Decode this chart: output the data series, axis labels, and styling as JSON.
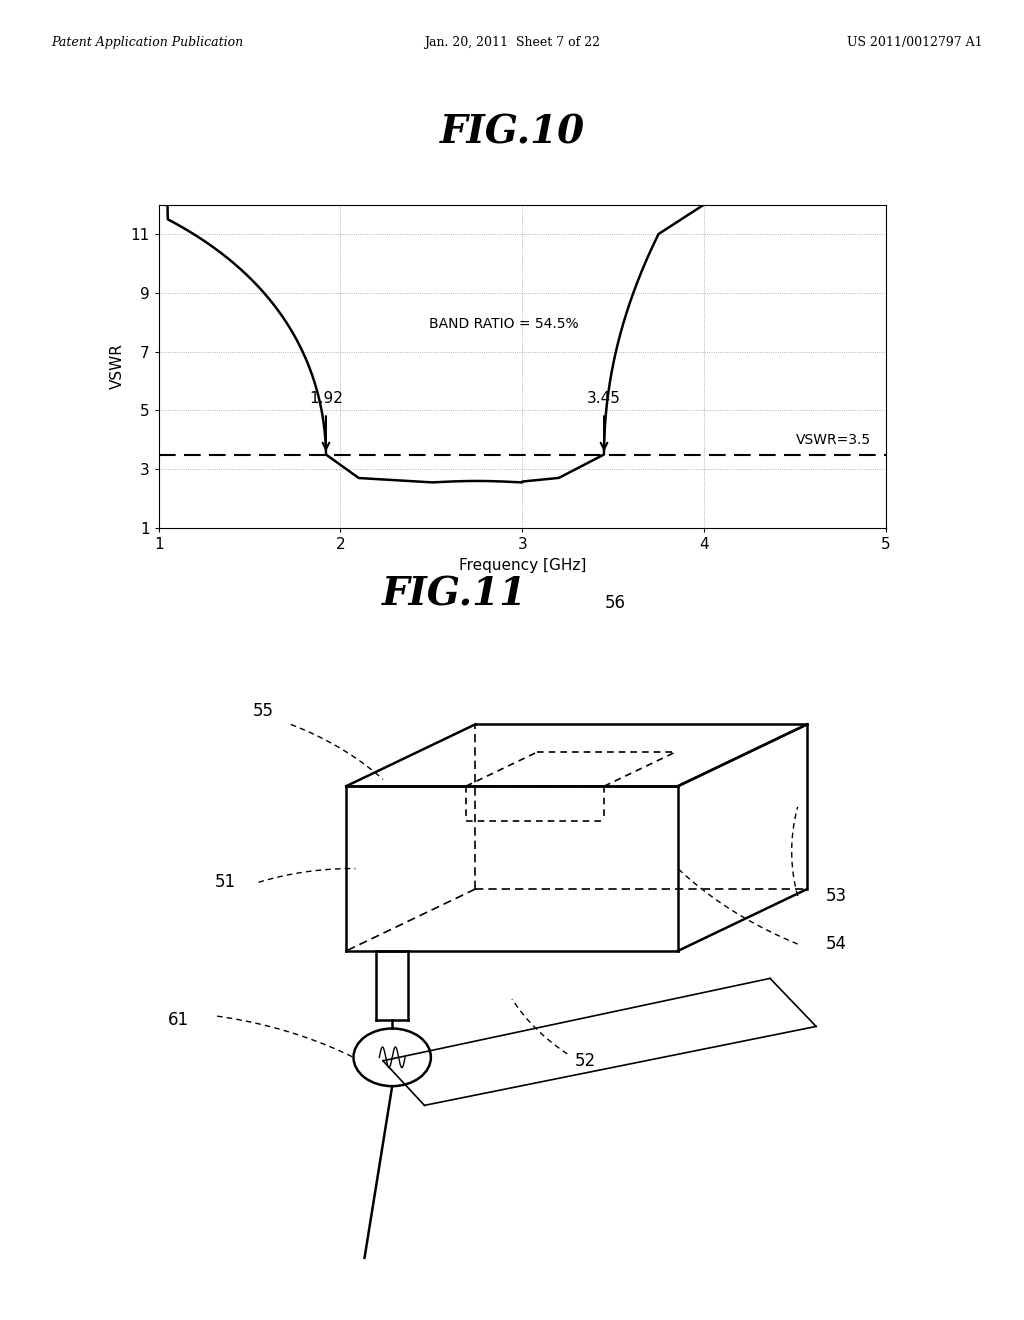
{
  "header_left": "Patent Application Publication",
  "header_center": "Jan. 20, 2011  Sheet 7 of 22",
  "header_right": "US 2011/0012797 A1",
  "fig10_title": "FIG.10",
  "fig11_title": "FIG.11",
  "graph_xlabel": "Frequency [GHz]",
  "graph_ylabel": "VSWR",
  "graph_xlim": [
    1,
    5
  ],
  "graph_ylim": [
    1,
    12
  ],
  "graph_xticks": [
    1,
    2,
    3,
    4,
    5
  ],
  "graph_yticks": [
    1,
    3,
    5,
    7,
    9,
    11
  ],
  "vswr_line": 3.5,
  "band_ratio_text": "BAND RATIO = 54.5%",
  "freq_low": 1.92,
  "freq_high": 3.45,
  "vswr_label": "VSWR=3.5",
  "bg_color": "#ffffff",
  "line_color": "#000000"
}
